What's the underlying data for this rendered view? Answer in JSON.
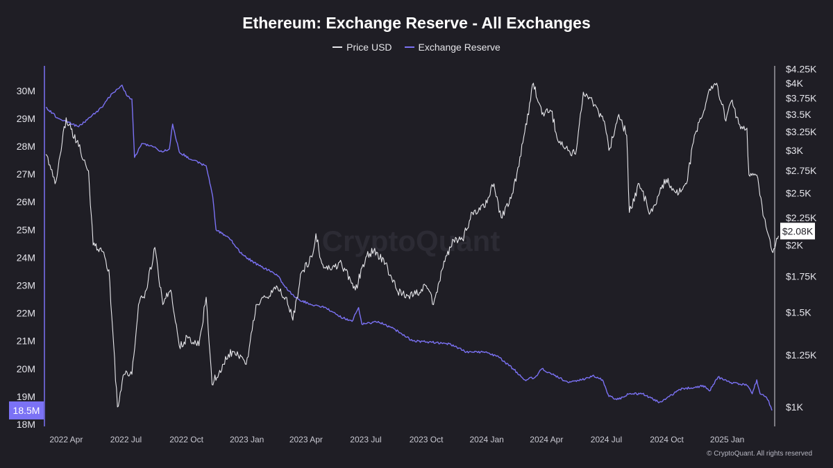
{
  "chart_data": {
    "type": "line",
    "title": "Ethereum: Exchange Reserve - All Exchanges",
    "legend_placement": "top-center",
    "grid": false,
    "watermark": "CryptoQuant",
    "copyright": "© CryptoQuant. All rights reserved",
    "x_ticks": [
      "2022 Apr",
      "2022 Jul",
      "2022 Oct",
      "2023 Jan",
      "2023 Apr",
      "2023 Jul",
      "2023 Oct",
      "2024 Jan",
      "2024 Apr",
      "2024 Jul",
      "2024 Oct",
      "2025 Jan"
    ],
    "x_range": [
      "2022-03-01",
      "2025-03-10"
    ],
    "y_left": {
      "range": [
        18,
        30.5
      ],
      "ticks": [
        {
          "value": 18,
          "label": "18M"
        },
        {
          "value": 19,
          "label": "19M"
        },
        {
          "value": 20,
          "label": "20M"
        },
        {
          "value": 21,
          "label": "21M"
        },
        {
          "value": 22,
          "label": "22M"
        },
        {
          "value": 23,
          "label": "23M"
        },
        {
          "value": 24,
          "label": "24M"
        },
        {
          "value": 25,
          "label": "25M"
        },
        {
          "value": 26,
          "label": "26M"
        },
        {
          "value": 27,
          "label": "27M"
        },
        {
          "value": 28,
          "label": "28M"
        },
        {
          "value": 29,
          "label": "29M"
        },
        {
          "value": 30,
          "label": "30M"
        }
      ],
      "current_label": "18.5M",
      "current_value": 18.5
    },
    "y_right": {
      "scale": "log",
      "range": [
        950,
        4250
      ],
      "ticks": [
        {
          "value": 1000,
          "label": "$1K"
        },
        {
          "value": 1250,
          "label": "$1.25K"
        },
        {
          "value": 1500,
          "label": "$1.5K"
        },
        {
          "value": 1750,
          "label": "$1.75K"
        },
        {
          "value": 2000,
          "label": "$2K"
        },
        {
          "value": 2250,
          "label": "$2.25K"
        },
        {
          "value": 2500,
          "label": "$2.5K"
        },
        {
          "value": 2750,
          "label": "$2.75K"
        },
        {
          "value": 3000,
          "label": "$3K"
        },
        {
          "value": 3250,
          "label": "$3.25K"
        },
        {
          "value": 3500,
          "label": "$3.5K"
        },
        {
          "value": 3750,
          "label": "$3.75K"
        },
        {
          "value": 4000,
          "label": "$4K"
        },
        {
          "value": 4250,
          "label": "$4.25K"
        }
      ],
      "current_label": "$2.08K",
      "current_value": 2080
    },
    "series": [
      {
        "name": "Price USD",
        "axis": "right",
        "color": "#e8e8ec",
        "points": [
          [
            "2022-03-01",
            2950
          ],
          [
            "2022-03-15",
            2600
          ],
          [
            "2022-04-01",
            3450
          ],
          [
            "2022-04-20",
            3050
          ],
          [
            "2022-05-05",
            2750
          ],
          [
            "2022-05-12",
            2000
          ],
          [
            "2022-05-25",
            1950
          ],
          [
            "2022-06-05",
            1800
          ],
          [
            "2022-06-18",
            1000
          ],
          [
            "2022-06-28",
            1150
          ],
          [
            "2022-07-10",
            1150
          ],
          [
            "2022-07-20",
            1550
          ],
          [
            "2022-08-01",
            1650
          ],
          [
            "2022-08-14",
            1980
          ],
          [
            "2022-08-26",
            1550
          ],
          [
            "2022-09-07",
            1650
          ],
          [
            "2022-09-20",
            1300
          ],
          [
            "2022-10-05",
            1350
          ],
          [
            "2022-10-20",
            1300
          ],
          [
            "2022-10-31",
            1600
          ],
          [
            "2022-11-09",
            1100
          ],
          [
            "2022-11-25",
            1200
          ],
          [
            "2022-12-10",
            1270
          ],
          [
            "2022-12-31",
            1200
          ],
          [
            "2023-01-15",
            1550
          ],
          [
            "2023-02-01",
            1600
          ],
          [
            "2023-02-15",
            1680
          ],
          [
            "2023-03-01",
            1600
          ],
          [
            "2023-03-12",
            1450
          ],
          [
            "2023-03-25",
            1780
          ],
          [
            "2023-04-10",
            1900
          ],
          [
            "2023-04-16",
            2100
          ],
          [
            "2023-04-25",
            1850
          ],
          [
            "2023-05-10",
            1800
          ],
          [
            "2023-05-25",
            1850
          ],
          [
            "2023-06-15",
            1650
          ],
          [
            "2023-07-01",
            1900
          ],
          [
            "2023-07-13",
            1950
          ],
          [
            "2023-07-31",
            1850
          ],
          [
            "2023-08-17",
            1650
          ],
          [
            "2023-09-01",
            1620
          ],
          [
            "2023-09-15",
            1620
          ],
          [
            "2023-10-01",
            1680
          ],
          [
            "2023-10-12",
            1550
          ],
          [
            "2023-10-25",
            1800
          ],
          [
            "2023-11-10",
            2050
          ],
          [
            "2023-11-25",
            2050
          ],
          [
            "2023-12-10",
            2300
          ],
          [
            "2023-12-28",
            2350
          ],
          [
            "2024-01-12",
            2600
          ],
          [
            "2024-01-23",
            2250
          ],
          [
            "2024-02-10",
            2500
          ],
          [
            "2024-02-25",
            3100
          ],
          [
            "2024-03-12",
            4000
          ],
          [
            "2024-03-25",
            3500
          ],
          [
            "2024-04-08",
            3550
          ],
          [
            "2024-04-20",
            3100
          ],
          [
            "2024-05-05",
            3000
          ],
          [
            "2024-05-15",
            2950
          ],
          [
            "2024-05-27",
            3850
          ],
          [
            "2024-06-10",
            3700
          ],
          [
            "2024-06-28",
            3400
          ],
          [
            "2024-07-05",
            3000
          ],
          [
            "2024-07-20",
            3500
          ],
          [
            "2024-08-01",
            3200
          ],
          [
            "2024-08-05",
            2300
          ],
          [
            "2024-08-20",
            2600
          ],
          [
            "2024-09-06",
            2300
          ],
          [
            "2024-09-20",
            2500
          ],
          [
            "2024-09-30",
            2650
          ],
          [
            "2024-10-15",
            2500
          ],
          [
            "2024-10-31",
            2600
          ],
          [
            "2024-11-12",
            3200
          ],
          [
            "2024-11-25",
            3500
          ],
          [
            "2024-12-05",
            3900
          ],
          [
            "2024-12-16",
            4000
          ],
          [
            "2024-12-30",
            3400
          ],
          [
            "2025-01-07",
            3700
          ],
          [
            "2025-01-20",
            3350
          ],
          [
            "2025-01-31",
            3300
          ],
          [
            "2025-02-03",
            2700
          ],
          [
            "2025-02-15",
            2700
          ],
          [
            "2025-02-26",
            2250
          ],
          [
            "2025-03-04",
            2100
          ],
          [
            "2025-03-10",
            1950
          ],
          [
            "2025-03-20",
            2080
          ]
        ]
      },
      {
        "name": "Exchange Reserve",
        "axis": "left",
        "color": "#7b72f5",
        "points": [
          [
            "2022-03-01",
            29.4
          ],
          [
            "2022-03-20",
            29.0
          ],
          [
            "2022-04-01",
            28.9
          ],
          [
            "2022-04-20",
            28.7
          ],
          [
            "2022-05-10",
            29.1
          ],
          [
            "2022-05-25",
            29.4
          ],
          [
            "2022-06-10",
            29.9
          ],
          [
            "2022-06-25",
            30.2
          ],
          [
            "2022-07-03",
            29.8
          ],
          [
            "2022-07-10",
            29.7
          ],
          [
            "2022-07-14",
            27.6
          ],
          [
            "2022-07-25",
            28.1
          ],
          [
            "2022-08-10",
            28.0
          ],
          [
            "2022-08-25",
            27.8
          ],
          [
            "2022-09-05",
            27.9
          ],
          [
            "2022-09-10",
            28.8
          ],
          [
            "2022-09-20",
            27.8
          ],
          [
            "2022-10-10",
            27.5
          ],
          [
            "2022-10-31",
            27.3
          ],
          [
            "2022-11-10",
            26.2
          ],
          [
            "2022-11-15",
            25.0
          ],
          [
            "2022-12-05",
            24.7
          ],
          [
            "2022-12-25",
            24.1
          ],
          [
            "2023-01-20",
            23.7
          ],
          [
            "2023-02-15",
            23.4
          ],
          [
            "2023-03-05",
            22.8
          ],
          [
            "2023-03-20",
            22.5
          ],
          [
            "2023-04-10",
            22.3
          ],
          [
            "2023-05-01",
            22.2
          ],
          [
            "2023-05-20",
            21.9
          ],
          [
            "2023-06-10",
            21.7
          ],
          [
            "2023-06-20",
            22.2
          ],
          [
            "2023-06-25",
            21.6
          ],
          [
            "2023-07-20",
            21.7
          ],
          [
            "2023-08-15",
            21.4
          ],
          [
            "2023-09-10",
            21.0
          ],
          [
            "2023-10-10",
            20.95
          ],
          [
            "2023-11-05",
            20.9
          ],
          [
            "2023-12-01",
            20.6
          ],
          [
            "2023-12-30",
            20.6
          ],
          [
            "2024-01-20",
            20.4
          ],
          [
            "2024-02-10",
            20.0
          ],
          [
            "2024-02-28",
            19.6
          ],
          [
            "2024-03-15",
            19.7
          ],
          [
            "2024-03-25",
            20.0
          ],
          [
            "2024-04-10",
            19.8
          ],
          [
            "2024-05-05",
            19.5
          ],
          [
            "2024-05-25",
            19.6
          ],
          [
            "2024-06-10",
            19.75
          ],
          [
            "2024-06-25",
            19.6
          ],
          [
            "2024-07-05",
            19.0
          ],
          [
            "2024-07-20",
            18.9
          ],
          [
            "2024-08-05",
            19.1
          ],
          [
            "2024-08-25",
            19.1
          ],
          [
            "2024-09-10",
            18.9
          ],
          [
            "2024-09-20",
            18.8
          ],
          [
            "2024-10-05",
            19.0
          ],
          [
            "2024-10-25",
            19.3
          ],
          [
            "2024-11-10",
            19.3
          ],
          [
            "2024-11-25",
            19.4
          ],
          [
            "2024-12-05",
            19.2
          ],
          [
            "2024-12-18",
            19.7
          ],
          [
            "2025-01-05",
            19.5
          ],
          [
            "2025-01-20",
            19.45
          ],
          [
            "2025-01-31",
            19.4
          ],
          [
            "2025-02-08",
            19.1
          ],
          [
            "2025-02-15",
            19.6
          ],
          [
            "2025-02-20",
            19.1
          ],
          [
            "2025-02-28",
            19.0
          ],
          [
            "2025-03-05",
            18.85
          ],
          [
            "2025-03-10",
            18.5
          ]
        ]
      }
    ]
  }
}
